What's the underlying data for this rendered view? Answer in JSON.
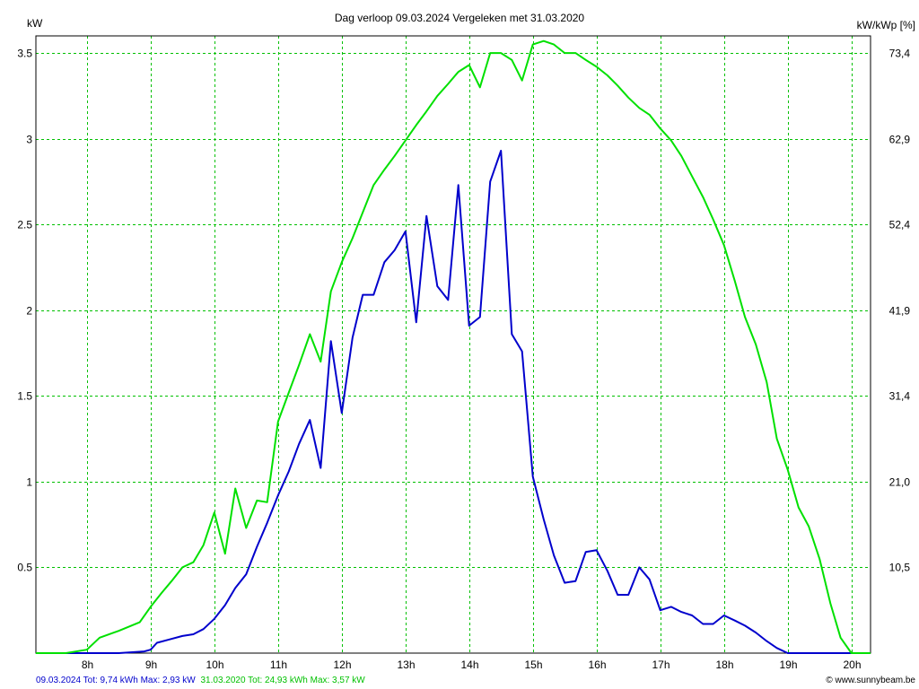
{
  "chart_data": {
    "type": "line",
    "title": "Dag  verloop 09.03.2024   Vergeleken met 31.03.2020",
    "ylabel_left": "kW",
    "ylabel_right": "kW/kWp [%]",
    "xlim": [
      7.2,
      20.3
    ],
    "ylim": [
      0,
      3.6
    ],
    "grid": true,
    "x_ticks": [
      {
        "value": 8,
        "label": "8h"
      },
      {
        "value": 9,
        "label": "9h"
      },
      {
        "value": 10,
        "label": "10h"
      },
      {
        "value": 11,
        "label": "11h"
      },
      {
        "value": 12,
        "label": "12h"
      },
      {
        "value": 13,
        "label": "13h"
      },
      {
        "value": 14,
        "label": "14h"
      },
      {
        "value": 15,
        "label": "15h"
      },
      {
        "value": 16,
        "label": "16h"
      },
      {
        "value": 17,
        "label": "17h"
      },
      {
        "value": 18,
        "label": "18h"
      },
      {
        "value": 19,
        "label": "19h"
      },
      {
        "value": 20,
        "label": "20h"
      }
    ],
    "y_ticks_left": [
      {
        "value": 0.5,
        "label": "0.5"
      },
      {
        "value": 1,
        "label": "1"
      },
      {
        "value": 1.5,
        "label": "1.5"
      },
      {
        "value": 2,
        "label": "2"
      },
      {
        "value": 2.5,
        "label": "2.5"
      },
      {
        "value": 3,
        "label": "3"
      },
      {
        "value": 3.5,
        "label": "3.5"
      }
    ],
    "y_ticks_right": [
      {
        "value": 0.5,
        "label": "10,5"
      },
      {
        "value": 1,
        "label": "21,0"
      },
      {
        "value": 1.5,
        "label": "31,4"
      },
      {
        "value": 2,
        "label": "41,9"
      },
      {
        "value": 2.5,
        "label": "52,4"
      },
      {
        "value": 3,
        "label": "62,9"
      },
      {
        "value": 3.5,
        "label": "73,4"
      }
    ],
    "series": [
      {
        "name": "09.03.2024",
        "color": "#0000cc",
        "points": [
          [
            7.2,
            0
          ],
          [
            8.2,
            0
          ],
          [
            8.5,
            0
          ],
          [
            8.9,
            0.01
          ],
          [
            9.0,
            0.02
          ],
          [
            9.1,
            0.06
          ],
          [
            9.3,
            0.08
          ],
          [
            9.5,
            0.1
          ],
          [
            9.67,
            0.11
          ],
          [
            9.83,
            0.14
          ],
          [
            10.0,
            0.2
          ],
          [
            10.17,
            0.28
          ],
          [
            10.33,
            0.38
          ],
          [
            10.5,
            0.46
          ],
          [
            10.67,
            0.62
          ],
          [
            10.83,
            0.76
          ],
          [
            11.0,
            0.92
          ],
          [
            11.17,
            1.06
          ],
          [
            11.33,
            1.22
          ],
          [
            11.5,
            1.36
          ],
          [
            11.67,
            1.08
          ],
          [
            11.83,
            1.82
          ],
          [
            12.0,
            1.4
          ],
          [
            12.17,
            1.84
          ],
          [
            12.33,
            2.09
          ],
          [
            12.5,
            2.09
          ],
          [
            12.67,
            2.28
          ],
          [
            12.83,
            2.35
          ],
          [
            13.0,
            2.46
          ],
          [
            13.17,
            1.93
          ],
          [
            13.33,
            2.55
          ],
          [
            13.5,
            2.14
          ],
          [
            13.67,
            2.06
          ],
          [
            13.83,
            2.73
          ],
          [
            14.0,
            1.91
          ],
          [
            14.17,
            1.96
          ],
          [
            14.33,
            2.75
          ],
          [
            14.5,
            2.93
          ],
          [
            14.67,
            1.86
          ],
          [
            14.83,
            1.76
          ],
          [
            15.0,
            1.03
          ],
          [
            15.17,
            0.78
          ],
          [
            15.33,
            0.57
          ],
          [
            15.5,
            0.41
          ],
          [
            15.67,
            0.42
          ],
          [
            15.83,
            0.59
          ],
          [
            16.0,
            0.6
          ],
          [
            16.17,
            0.48
          ],
          [
            16.33,
            0.34
          ],
          [
            16.5,
            0.34
          ],
          [
            16.67,
            0.5
          ],
          [
            16.83,
            0.43
          ],
          [
            17.0,
            0.25
          ],
          [
            17.17,
            0.27
          ],
          [
            17.33,
            0.24
          ],
          [
            17.5,
            0.22
          ],
          [
            17.67,
            0.17
          ],
          [
            17.83,
            0.17
          ],
          [
            18.0,
            0.22
          ],
          [
            18.17,
            0.19
          ],
          [
            18.33,
            0.16
          ],
          [
            18.5,
            0.12
          ],
          [
            18.67,
            0.07
          ],
          [
            18.83,
            0.03
          ],
          [
            19.0,
            0.0
          ],
          [
            19.5,
            0.0
          ],
          [
            20.3,
            0.0
          ]
        ]
      },
      {
        "name": "31.03.2020",
        "color": "#00e000",
        "points": [
          [
            7.2,
            0
          ],
          [
            7.67,
            0
          ],
          [
            8.0,
            0.02
          ],
          [
            8.2,
            0.09
          ],
          [
            8.5,
            0.13
          ],
          [
            8.83,
            0.18
          ],
          [
            9.0,
            0.27
          ],
          [
            9.17,
            0.35
          ],
          [
            9.33,
            0.42
          ],
          [
            9.5,
            0.5
          ],
          [
            9.67,
            0.53
          ],
          [
            9.83,
            0.63
          ],
          [
            10.0,
            0.82
          ],
          [
            10.17,
            0.58
          ],
          [
            10.33,
            0.96
          ],
          [
            10.5,
            0.73
          ],
          [
            10.67,
            0.89
          ],
          [
            10.83,
            0.88
          ],
          [
            11.0,
            1.35
          ],
          [
            11.17,
            1.52
          ],
          [
            11.33,
            1.68
          ],
          [
            11.5,
            1.86
          ],
          [
            11.67,
            1.7
          ],
          [
            11.83,
            2.11
          ],
          [
            12.0,
            2.28
          ],
          [
            12.17,
            2.42
          ],
          [
            12.33,
            2.57
          ],
          [
            12.5,
            2.73
          ],
          [
            12.67,
            2.82
          ],
          [
            12.83,
            2.9
          ],
          [
            13.0,
            2.99
          ],
          [
            13.17,
            3.08
          ],
          [
            13.33,
            3.16
          ],
          [
            13.5,
            3.25
          ],
          [
            13.67,
            3.32
          ],
          [
            13.83,
            3.39
          ],
          [
            14.0,
            3.43
          ],
          [
            14.17,
            3.3
          ],
          [
            14.33,
            3.5
          ],
          [
            14.5,
            3.5
          ],
          [
            14.67,
            3.46
          ],
          [
            14.83,
            3.34
          ],
          [
            15.0,
            3.55
          ],
          [
            15.17,
            3.57
          ],
          [
            15.33,
            3.55
          ],
          [
            15.5,
            3.5
          ],
          [
            15.67,
            3.5
          ],
          [
            15.83,
            3.46
          ],
          [
            16.0,
            3.42
          ],
          [
            16.17,
            3.37
          ],
          [
            16.33,
            3.31
          ],
          [
            16.5,
            3.24
          ],
          [
            16.67,
            3.18
          ],
          [
            16.83,
            3.14
          ],
          [
            17.0,
            3.06
          ],
          [
            17.17,
            2.99
          ],
          [
            17.33,
            2.9
          ],
          [
            17.5,
            2.78
          ],
          [
            17.67,
            2.66
          ],
          [
            17.83,
            2.53
          ],
          [
            18.0,
            2.38
          ],
          [
            18.17,
            2.17
          ],
          [
            18.33,
            1.96
          ],
          [
            18.5,
            1.8
          ],
          [
            18.67,
            1.58
          ],
          [
            18.83,
            1.25
          ],
          [
            19.0,
            1.07
          ],
          [
            19.17,
            0.85
          ],
          [
            19.33,
            0.74
          ],
          [
            19.5,
            0.55
          ],
          [
            19.67,
            0.29
          ],
          [
            19.83,
            0.09
          ],
          [
            20.0,
            0.0
          ],
          [
            20.3,
            0.0
          ]
        ]
      }
    ]
  },
  "footer": {
    "series1_summary": "09.03.2024 Tot: 9,74 kWh Max: 2,93 kW",
    "series2_summary": "31.03.2020 Tot: 24,93 kWh Max: 3,57 kW",
    "copyright": "© www.sunnybeam.be"
  },
  "colors": {
    "grid": "#00c000",
    "axis": "#000000",
    "background": "#ffffff"
  }
}
